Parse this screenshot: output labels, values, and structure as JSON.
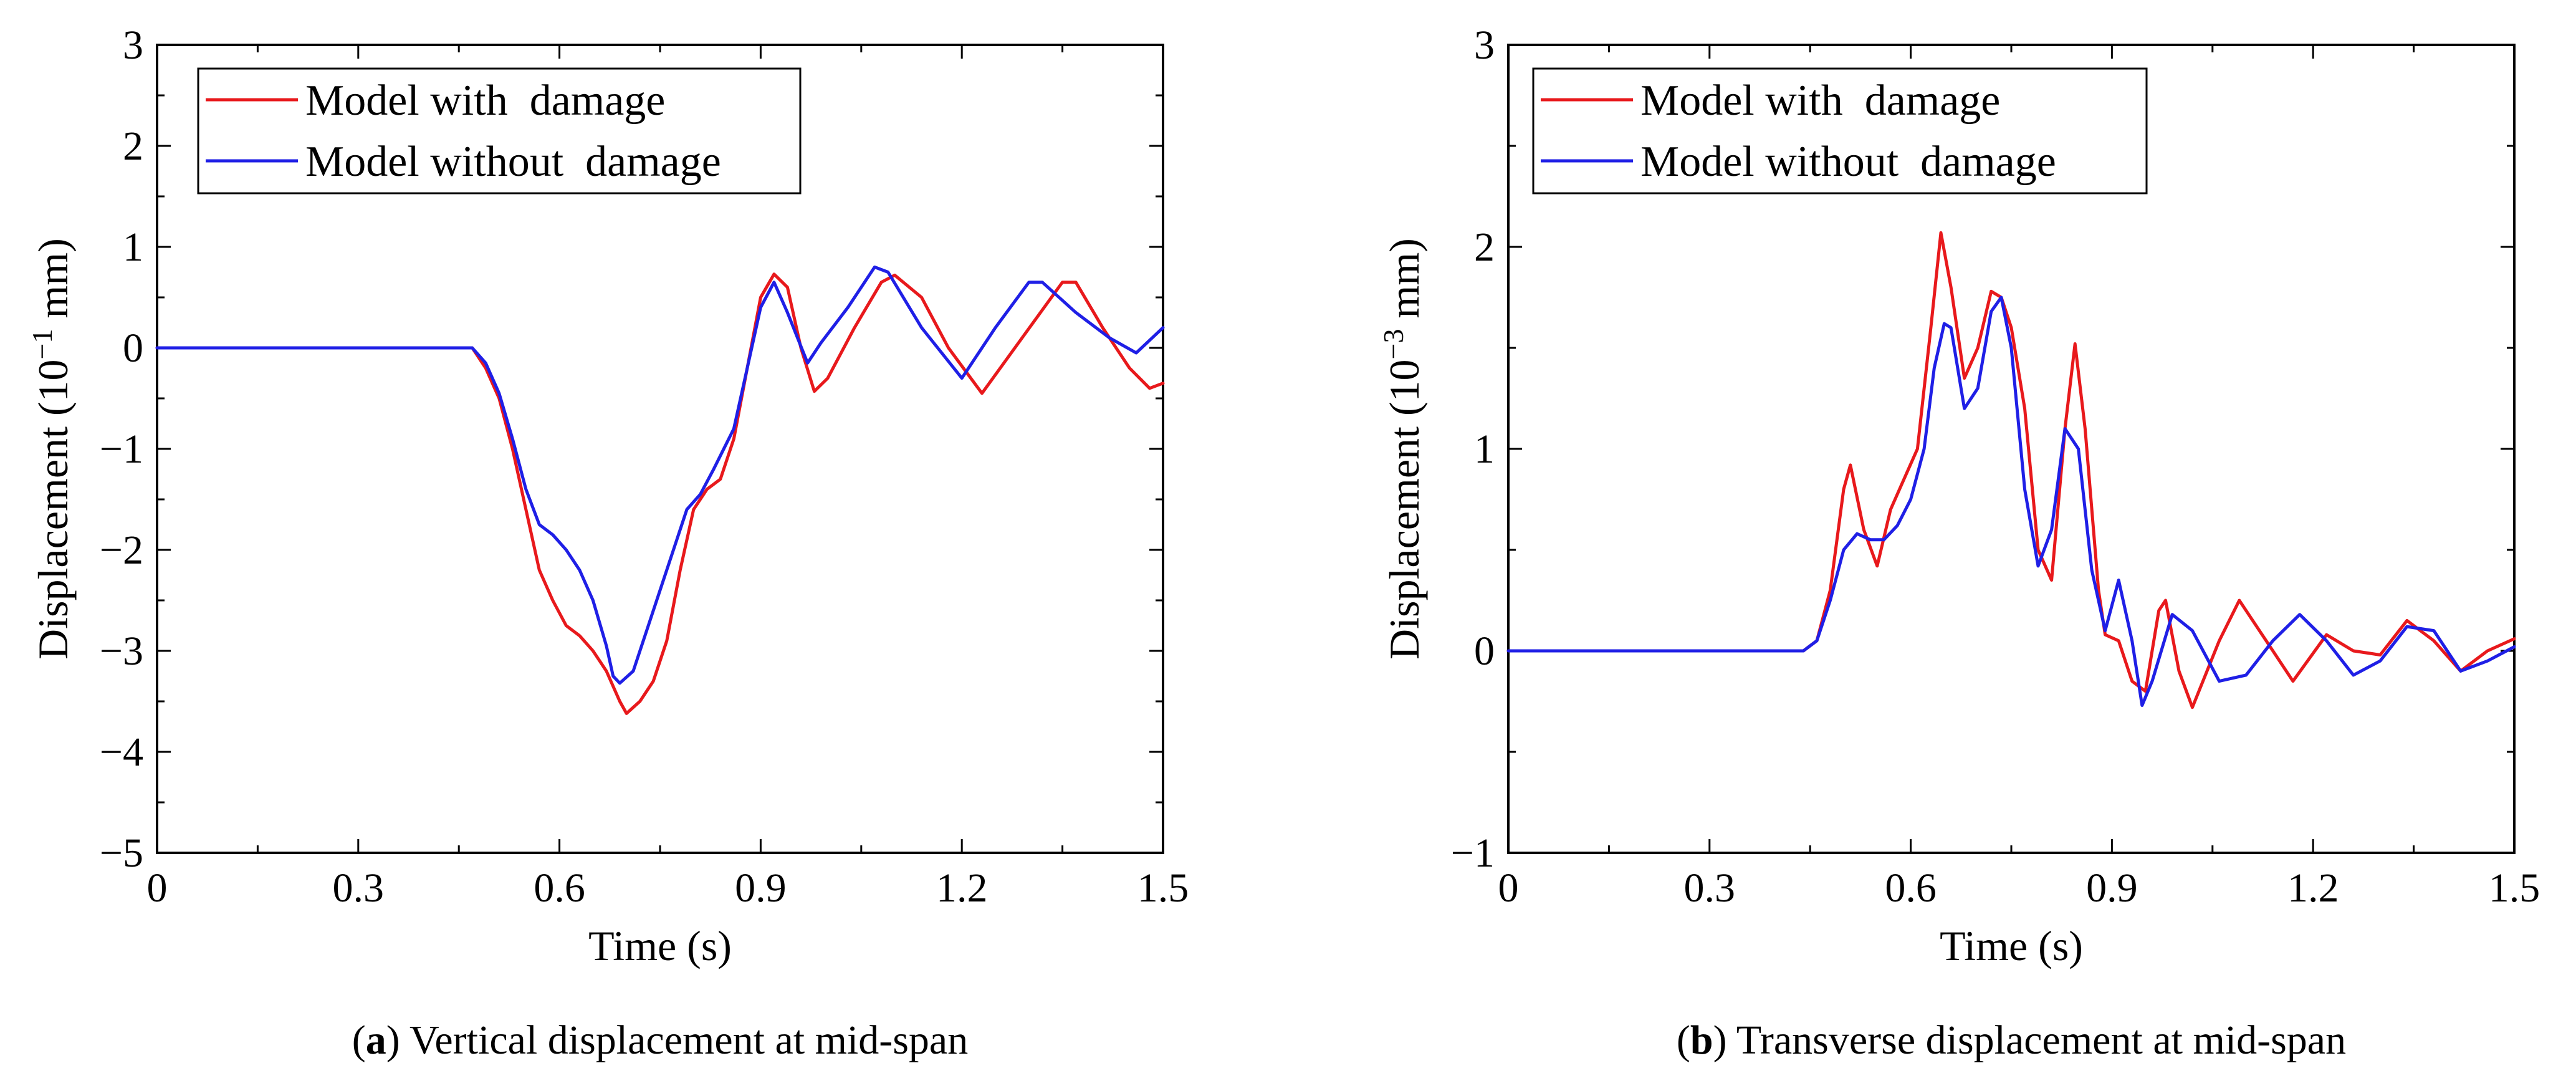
{
  "chart_data": [
    {
      "type": "line",
      "panel_label": "a",
      "caption": "Vertical displacement at mid-span",
      "xlabel": "Time (s)",
      "ylabel_main": "Displacement (10",
      "ylabel_exp": "−1",
      "ylabel_unit": " mm)",
      "xlim": [
        0,
        1.5
      ],
      "ylim": [
        -5,
        3
      ],
      "xticks": [
        0,
        0.3,
        0.6,
        0.9,
        1.2,
        1.5
      ],
      "xtick_labels": [
        "0",
        "0.3",
        "0.6",
        "0.9",
        "1.2",
        "1.5"
      ],
      "yticks": [
        -5,
        -4,
        -3,
        -2,
        -1,
        0,
        1,
        2,
        3
      ],
      "ytick_labels": [
        "−5",
        "−4",
        "−3",
        "−2",
        "−1",
        "0",
        "1",
        "2",
        "3"
      ],
      "legend_position": "top-left",
      "series": [
        {
          "name": "Model with  damage",
          "color": "#e8191c",
          "x": [
            0,
            0.47,
            0.49,
            0.51,
            0.53,
            0.55,
            0.57,
            0.59,
            0.61,
            0.63,
            0.65,
            0.67,
            0.69,
            0.7,
            0.72,
            0.74,
            0.76,
            0.78,
            0.8,
            0.82,
            0.84,
            0.86,
            0.88,
            0.9,
            0.92,
            0.94,
            0.96,
            0.98,
            1.0,
            1.04,
            1.08,
            1.1,
            1.14,
            1.18,
            1.23,
            1.29,
            1.35,
            1.37,
            1.41,
            1.45,
            1.48,
            1.5
          ],
          "y": [
            0,
            0,
            -0.2,
            -0.5,
            -1.0,
            -1.6,
            -2.2,
            -2.5,
            -2.75,
            -2.85,
            -3.0,
            -3.2,
            -3.5,
            -3.62,
            -3.5,
            -3.3,
            -2.9,
            -2.2,
            -1.6,
            -1.4,
            -1.3,
            -0.9,
            -0.2,
            0.5,
            0.73,
            0.6,
            0.0,
            -0.43,
            -0.3,
            0.2,
            0.65,
            0.72,
            0.5,
            0.0,
            -0.45,
            0.1,
            0.65,
            0.65,
            0.2,
            -0.2,
            -0.4,
            -0.35
          ]
        },
        {
          "name": "Model without  damage",
          "color": "#1f1fe6",
          "x": [
            0,
            0.47,
            0.49,
            0.51,
            0.53,
            0.55,
            0.57,
            0.59,
            0.61,
            0.63,
            0.65,
            0.67,
            0.68,
            0.69,
            0.71,
            0.73,
            0.75,
            0.77,
            0.79,
            0.81,
            0.83,
            0.86,
            0.88,
            0.9,
            0.92,
            0.94,
            0.97,
            0.99,
            1.03,
            1.07,
            1.09,
            1.14,
            1.2,
            1.25,
            1.3,
            1.32,
            1.37,
            1.42,
            1.46,
            1.5
          ],
          "y": [
            0,
            0,
            -0.15,
            -0.45,
            -0.9,
            -1.4,
            -1.75,
            -1.85,
            -2.0,
            -2.2,
            -2.5,
            -2.95,
            -3.25,
            -3.32,
            -3.2,
            -2.8,
            -2.4,
            -2.0,
            -1.6,
            -1.45,
            -1.2,
            -0.8,
            -0.2,
            0.4,
            0.65,
            0.35,
            -0.15,
            0.05,
            0.4,
            0.8,
            0.75,
            0.2,
            -0.3,
            0.2,
            0.65,
            0.65,
            0.35,
            0.1,
            -0.05,
            0.2
          ]
        }
      ]
    },
    {
      "type": "line",
      "panel_label": "b",
      "caption": "Transverse displacement at mid-span",
      "xlabel": "Time (s)",
      "ylabel_main": "Displacement (10",
      "ylabel_exp": "−3",
      "ylabel_unit": " mm)",
      "xlim": [
        0,
        1.5
      ],
      "ylim": [
        -1,
        3
      ],
      "xticks": [
        0,
        0.3,
        0.6,
        0.9,
        1.2,
        1.5
      ],
      "xtick_labels": [
        "0",
        "0.3",
        "0.6",
        "0.9",
        "1.2",
        "1.5"
      ],
      "yticks": [
        -1,
        0,
        1,
        2,
        3
      ],
      "ytick_labels": [
        "−1",
        "0",
        "1",
        "2",
        "3"
      ],
      "legend_position": "top-left",
      "series": [
        {
          "name": "Model with  damage",
          "color": "#e8191c",
          "x": [
            0,
            0.44,
            0.46,
            0.48,
            0.5,
            0.51,
            0.53,
            0.55,
            0.57,
            0.59,
            0.61,
            0.63,
            0.645,
            0.66,
            0.68,
            0.7,
            0.72,
            0.735,
            0.75,
            0.77,
            0.79,
            0.81,
            0.83,
            0.845,
            0.86,
            0.88,
            0.89,
            0.91,
            0.93,
            0.95,
            0.97,
            0.98,
            1.0,
            1.02,
            1.06,
            1.09,
            1.13,
            1.17,
            1.22,
            1.26,
            1.3,
            1.34,
            1.38,
            1.42,
            1.46,
            1.5
          ],
          "y": [
            0,
            0,
            0.05,
            0.3,
            0.8,
            0.92,
            0.6,
            0.42,
            0.7,
            0.85,
            1.0,
            1.6,
            2.07,
            1.8,
            1.35,
            1.5,
            1.78,
            1.75,
            1.6,
            1.2,
            0.5,
            0.35,
            1.1,
            1.52,
            1.1,
            0.3,
            0.08,
            0.05,
            -0.15,
            -0.2,
            0.2,
            0.25,
            -0.1,
            -0.28,
            0.05,
            0.25,
            0.05,
            -0.15,
            0.08,
            0.0,
            -0.02,
            0.15,
            0.05,
            -0.1,
            0.0,
            0.06
          ]
        },
        {
          "name": "Model without  damage",
          "color": "#1f1fe6",
          "x": [
            0,
            0.44,
            0.46,
            0.48,
            0.5,
            0.52,
            0.54,
            0.56,
            0.58,
            0.6,
            0.62,
            0.635,
            0.65,
            0.66,
            0.68,
            0.7,
            0.72,
            0.735,
            0.75,
            0.77,
            0.79,
            0.81,
            0.83,
            0.85,
            0.87,
            0.89,
            0.91,
            0.93,
            0.945,
            0.96,
            0.99,
            1.02,
            1.06,
            1.1,
            1.14,
            1.18,
            1.22,
            1.26,
            1.3,
            1.34,
            1.38,
            1.42,
            1.46,
            1.5
          ],
          "y": [
            0,
            0,
            0.05,
            0.25,
            0.5,
            0.58,
            0.55,
            0.55,
            0.62,
            0.75,
            1.0,
            1.4,
            1.62,
            1.6,
            1.2,
            1.3,
            1.68,
            1.75,
            1.5,
            0.8,
            0.42,
            0.6,
            1.1,
            1.0,
            0.4,
            0.1,
            0.35,
            0.05,
            -0.27,
            -0.15,
            0.18,
            0.1,
            -0.15,
            -0.12,
            0.05,
            0.18,
            0.05,
            -0.12,
            -0.05,
            0.12,
            0.1,
            -0.1,
            -0.05,
            0.02
          ]
        }
      ]
    }
  ]
}
